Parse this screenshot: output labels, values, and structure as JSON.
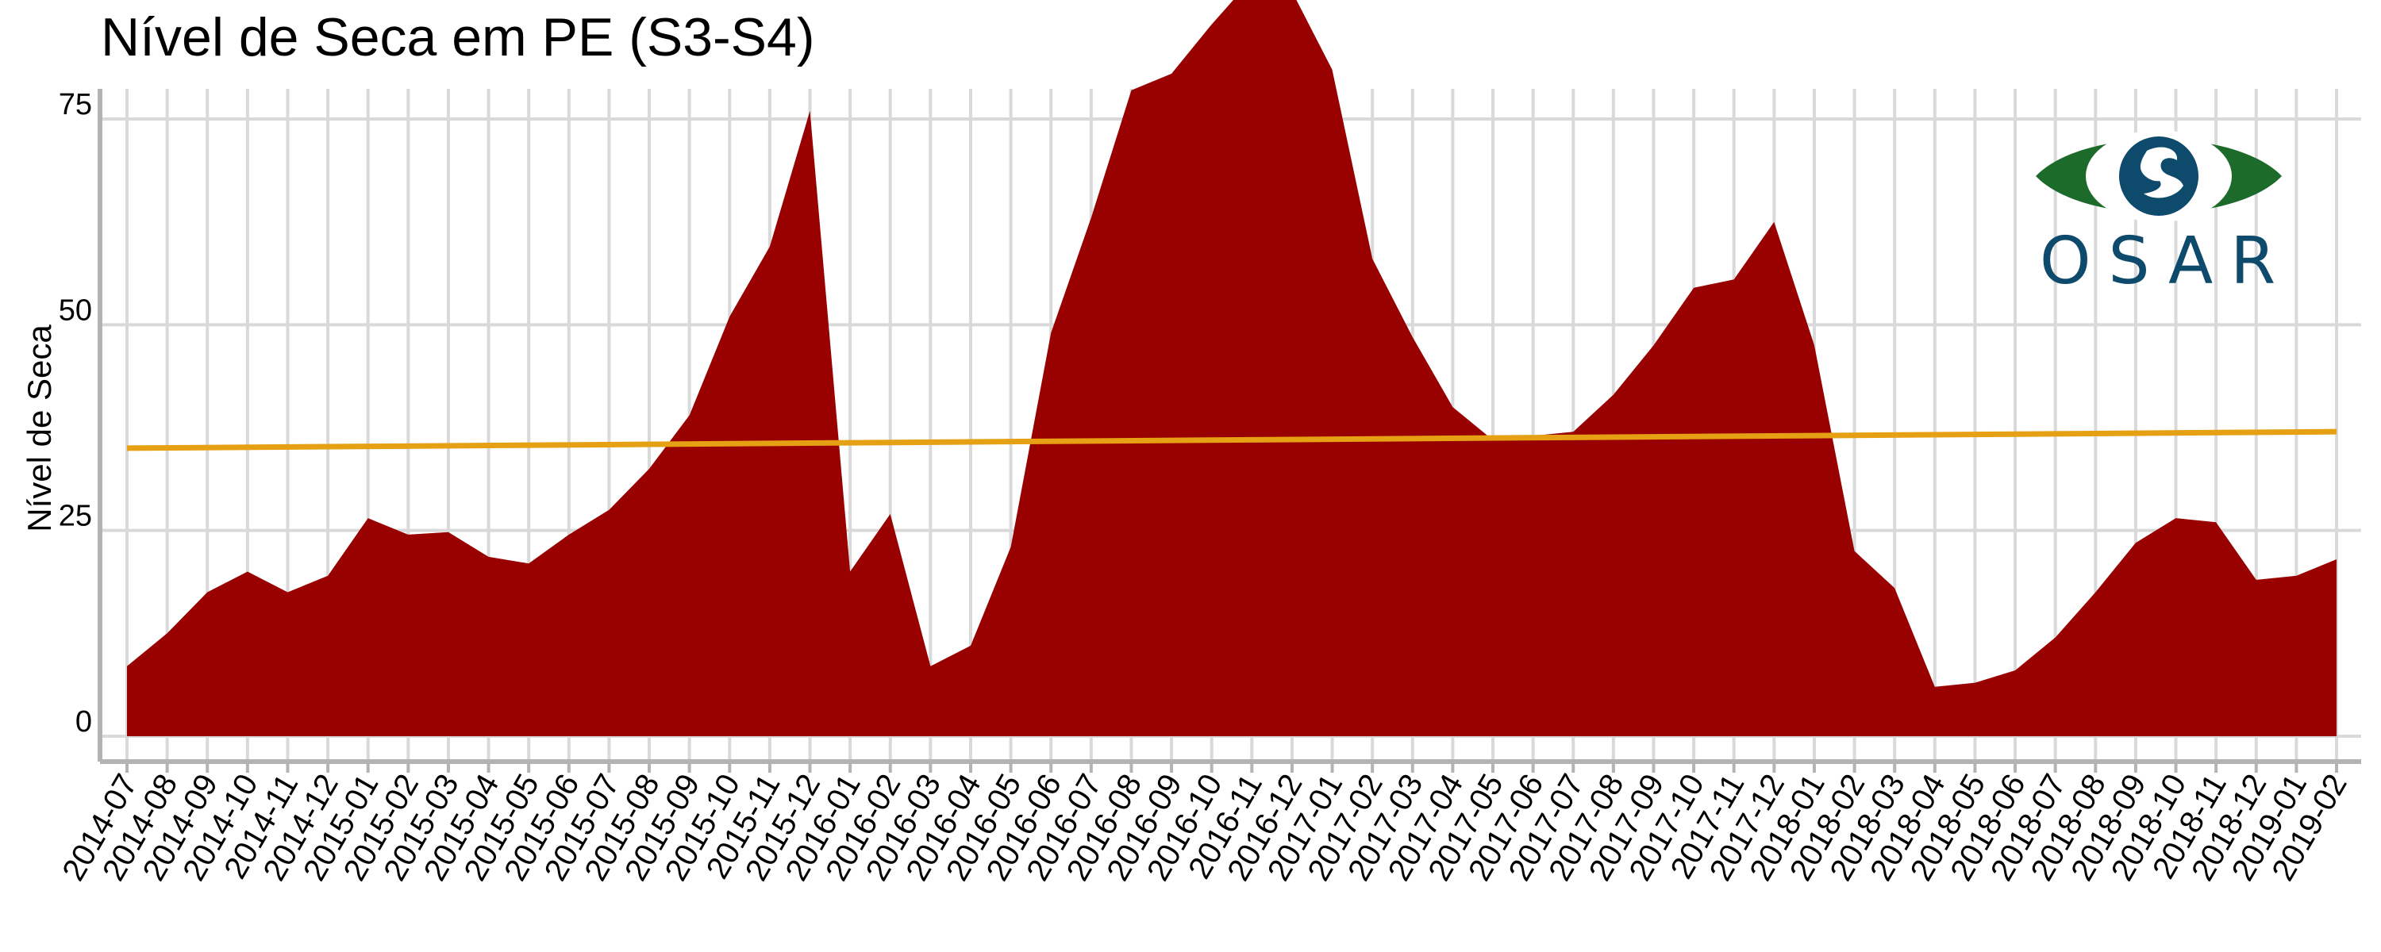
{
  "chart_data": {
    "type": "area",
    "title": "Nível de Seca em PE (S3-S4)",
    "ylabel": "Nível de Seca",
    "xlabel": "",
    "ylim": [
      -5,
      96
    ],
    "yticks": [
      0,
      25,
      50,
      75
    ],
    "grid": true,
    "x": [
      "2014-07",
      "2014-08",
      "2014-09",
      "2014-10",
      "2014-11",
      "2014-12",
      "2015-01",
      "2015-02",
      "2015-03",
      "2015-04",
      "2015-05",
      "2015-06",
      "2015-07",
      "2015-08",
      "2015-09",
      "2015-10",
      "2015-11",
      "2015-12",
      "2016-01",
      "2016-02",
      "2016-03",
      "2016-04",
      "2016-05",
      "2016-06",
      "2016-07",
      "2016-08",
      "2016-09",
      "2016-10",
      "2016-11",
      "2016-12",
      "2017-01",
      "2017-02",
      "2017-03",
      "2017-04",
      "2017-05",
      "2017-06",
      "2017-07",
      "2017-08",
      "2017-09",
      "2017-10",
      "2017-11",
      "2017-12",
      "2018-01",
      "2018-02",
      "2018-03",
      "2018-04",
      "2018-05",
      "2018-06",
      "2018-07",
      "2018-08",
      "2018-09",
      "2018-10",
      "2018-11",
      "2018-12",
      "2019-01",
      "2019-02"
    ],
    "series": [
      {
        "values": [
          8.5,
          12.5,
          17.5,
          20,
          17.5,
          19.5,
          26.5,
          24.5,
          24.8,
          21.8,
          21,
          24.5,
          27.5,
          32.5,
          39,
          51,
          59.5,
          76,
          20,
          27,
          8.5,
          11,
          23,
          49,
          63,
          78.5,
          80.5,
          86.5,
          92,
          90.5,
          81,
          58,
          48.5,
          40,
          36,
          36.5,
          37,
          41.5,
          47.5,
          54.5,
          55.5,
          62.5,
          47.5,
          22.5,
          18,
          6,
          6.5,
          8,
          12,
          17.5,
          23.5,
          26.5,
          26,
          19,
          19.5,
          21.5
        ],
        "color": "#990000"
      }
    ],
    "trend": {
      "start": 35,
      "end": 37,
      "color": "#e6a014"
    }
  },
  "logo": {
    "text": "OSAR",
    "colors": {
      "green": "#1d6b2a",
      "blue": "#0e4a6b"
    }
  }
}
